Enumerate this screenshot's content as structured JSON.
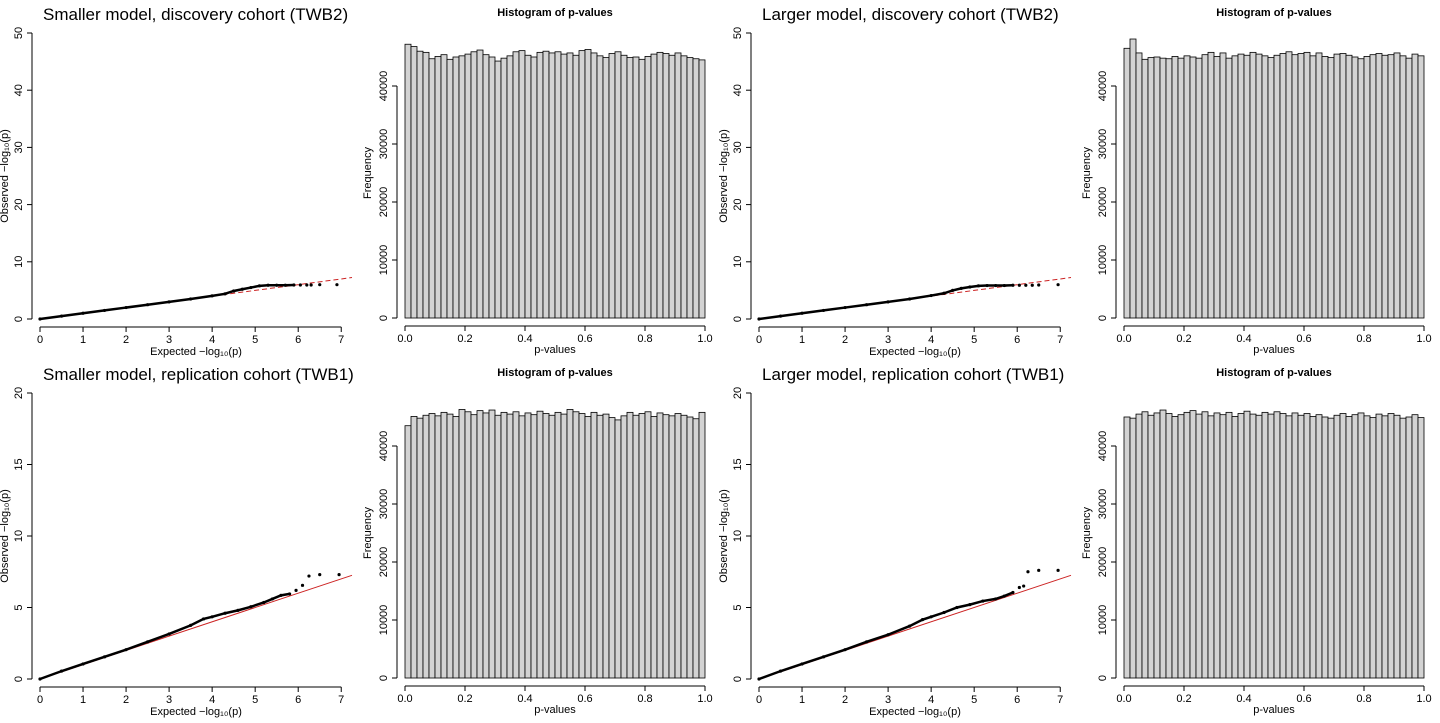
{
  "figure": {
    "colors": {
      "points": "#000000",
      "reference_line": "#cc2222",
      "bar_fill": "#d3d3d3",
      "bar_stroke": "#000000",
      "axis": "#000000"
    }
  },
  "chart_data": [
    {
      "id": "qq-small-discovery",
      "type": "scatter",
      "title": "Smaller model, discovery cohort (TWB2)",
      "xlabel": "Expected −log₁₀(p)",
      "ylabel": "Observed −log₁₀(p)",
      "xlim": [
        0,
        7.25
      ],
      "ylim": [
        0,
        50
      ],
      "xticks": [
        "0",
        "1",
        "2",
        "3",
        "4",
        "5",
        "6",
        "7"
      ],
      "yticks": [
        "0",
        "10",
        "20",
        "30",
        "40",
        "50"
      ],
      "xtick_values": [
        0,
        1,
        2,
        3,
        4,
        5,
        6,
        7
      ],
      "ytick_values": [
        0,
        10,
        20,
        30,
        40,
        50
      ],
      "reference_line": {
        "from": [
          0,
          0
        ],
        "to": [
          7.25,
          7.25
        ],
        "style": "dashed"
      },
      "points": [
        [
          0,
          0
        ],
        [
          0.5,
          0.5
        ],
        [
          1,
          1
        ],
        [
          1.5,
          1.5
        ],
        [
          2,
          2
        ],
        [
          2.5,
          2.5
        ],
        [
          3,
          3
        ],
        [
          3.5,
          3.5
        ],
        [
          4,
          4.05
        ],
        [
          4.3,
          4.4
        ],
        [
          4.5,
          4.9
        ],
        [
          4.7,
          5.2
        ],
        [
          4.9,
          5.5
        ],
        [
          5.1,
          5.8
        ],
        [
          5.3,
          5.9
        ],
        [
          5.5,
          5.9
        ],
        [
          5.7,
          5.9
        ],
        [
          5.9,
          5.95
        ],
        [
          6.05,
          5.95
        ],
        [
          6.2,
          5.95
        ],
        [
          6.3,
          5.95
        ],
        [
          6.5,
          6
        ],
        [
          6.9,
          6
        ]
      ]
    },
    {
      "id": "hist-small-discovery",
      "type": "bar",
      "title": "Histogram of p-values",
      "xlabel": "p-values",
      "ylabel": "Frequency",
      "xlim": [
        0,
        1
      ],
      "ylim": [
        0,
        50000
      ],
      "xticks": [
        "0.0",
        "0.2",
        "0.4",
        "0.6",
        "0.8",
        "1.0"
      ],
      "yticks": [
        "0",
        "10000",
        "20000",
        "30000",
        "40000"
      ],
      "xtick_values": [
        0,
        0.2,
        0.4,
        0.6,
        0.8,
        1.0
      ],
      "ytick_values": [
        0,
        10000,
        20000,
        30000,
        40000
      ],
      "bin_width": 0.02,
      "values": [
        47200,
        46800,
        46000,
        45800,
        44700,
        45100,
        45400,
        44600,
        45000,
        45200,
        45500,
        45900,
        46200,
        45400,
        45000,
        44300,
        44800,
        45200,
        45900,
        46100,
        45300,
        45000,
        45800,
        46000,
        45700,
        45900,
        45500,
        45700,
        45300,
        46100,
        46300,
        45700,
        45200,
        44900,
        45600,
        45900,
        45300,
        44900,
        45000,
        44600,
        45100,
        45500,
        45800,
        45600,
        45300,
        45700,
        45200,
        44900,
        44700,
        44500
      ]
    },
    {
      "id": "qq-large-discovery",
      "type": "scatter",
      "title": "Larger model, discovery cohort (TWB2)",
      "xlabel": "Expected −log₁₀(p)",
      "ylabel": "Observed −log₁₀(p)",
      "xlim": [
        0,
        7.25
      ],
      "ylim": [
        0,
        50
      ],
      "xticks": [
        "0",
        "1",
        "2",
        "3",
        "4",
        "5",
        "6",
        "7"
      ],
      "yticks": [
        "0",
        "10",
        "20",
        "30",
        "40",
        "50"
      ],
      "xtick_values": [
        0,
        1,
        2,
        3,
        4,
        5,
        6,
        7
      ],
      "ytick_values": [
        0,
        10,
        20,
        30,
        40,
        50
      ],
      "reference_line": {
        "from": [
          0,
          0
        ],
        "to": [
          7.25,
          7.25
        ],
        "style": "dashed"
      },
      "points": [
        [
          0,
          0
        ],
        [
          0.5,
          0.5
        ],
        [
          1,
          1
        ],
        [
          1.5,
          1.5
        ],
        [
          2,
          2
        ],
        [
          2.5,
          2.5
        ],
        [
          3,
          3
        ],
        [
          3.5,
          3.5
        ],
        [
          4,
          4.1
        ],
        [
          4.3,
          4.5
        ],
        [
          4.5,
          5
        ],
        [
          4.7,
          5.35
        ],
        [
          4.9,
          5.6
        ],
        [
          5.1,
          5.8
        ],
        [
          5.3,
          5.85
        ],
        [
          5.5,
          5.85
        ],
        [
          5.7,
          5.85
        ],
        [
          5.9,
          5.9
        ],
        [
          6.05,
          5.9
        ],
        [
          6.2,
          5.9
        ],
        [
          6.35,
          5.9
        ],
        [
          6.5,
          5.95
        ],
        [
          6.95,
          6
        ]
      ]
    },
    {
      "id": "hist-large-discovery",
      "type": "bar",
      "title": "Histogram of p-values",
      "xlabel": "p-values",
      "ylabel": "Frequency",
      "xlim": [
        0,
        1
      ],
      "ylim": [
        0,
        50000
      ],
      "xticks": [
        "0.0",
        "0.2",
        "0.4",
        "0.6",
        "0.8",
        "1.0"
      ],
      "yticks": [
        "0",
        "10000",
        "20000",
        "30000",
        "40000"
      ],
      "xtick_values": [
        0,
        0.2,
        0.4,
        0.6,
        0.8,
        1.0
      ],
      "ytick_values": [
        0,
        10000,
        20000,
        30000,
        40000
      ],
      "bin_width": 0.02,
      "values": [
        46500,
        48100,
        45700,
        44600,
        44900,
        45000,
        44800,
        44700,
        45100,
        44800,
        45200,
        45000,
        44800,
        45400,
        45800,
        45100,
        45700,
        44800,
        45200,
        45500,
        45300,
        45800,
        45500,
        45200,
        44900,
        45300,
        45600,
        45900,
        45400,
        45600,
        45800,
        45200,
        45700,
        45100,
        44900,
        45500,
        45600,
        45300,
        45000,
        44700,
        45100,
        45400,
        45600,
        45300,
        45400,
        45700,
        45200,
        44800,
        45500,
        45200
      ]
    },
    {
      "id": "qq-small-replication",
      "type": "scatter",
      "title": "Smaller model, replication cohort (TWB1)",
      "xlabel": "Expected −log₁₀(p)",
      "ylabel": "Observed −log₁₀(p)",
      "xlim": [
        0,
        7.25
      ],
      "ylim": [
        0,
        20
      ],
      "xticks": [
        "0",
        "1",
        "2",
        "3",
        "4",
        "5",
        "6",
        "7"
      ],
      "yticks": [
        "0",
        "5",
        "10",
        "15",
        "20"
      ],
      "xtick_values": [
        0,
        1,
        2,
        3,
        4,
        5,
        6,
        7
      ],
      "ytick_values": [
        0,
        5,
        10,
        15,
        20
      ],
      "reference_line": {
        "from": [
          0,
          0
        ],
        "to": [
          7.25,
          7.25
        ],
        "style": "solid"
      },
      "points": [
        [
          0,
          0
        ],
        [
          0.5,
          0.55
        ],
        [
          1,
          1.05
        ],
        [
          1.5,
          1.55
        ],
        [
          2,
          2.05
        ],
        [
          2.5,
          2.6
        ],
        [
          3,
          3.15
        ],
        [
          3.5,
          3.75
        ],
        [
          3.8,
          4.2
        ],
        [
          4,
          4.35
        ],
        [
          4.3,
          4.6
        ],
        [
          4.6,
          4.8
        ],
        [
          4.9,
          5.05
        ],
        [
          5.2,
          5.35
        ],
        [
          5.4,
          5.6
        ],
        [
          5.6,
          5.85
        ],
        [
          5.8,
          5.95
        ],
        [
          5.95,
          6.2
        ],
        [
          6.1,
          6.55
        ],
        [
          6.25,
          7.2
        ],
        [
          6.5,
          7.3
        ],
        [
          6.95,
          7.3
        ]
      ]
    },
    {
      "id": "hist-small-replication",
      "type": "bar",
      "title": "Histogram of p-values",
      "xlabel": "p-values",
      "ylabel": "Frequency",
      "xlim": [
        0,
        1
      ],
      "ylim": [
        0,
        50000
      ],
      "xticks": [
        "0.0",
        "0.2",
        "0.4",
        "0.6",
        "0.8",
        "1.0"
      ],
      "yticks": [
        "0",
        "10000",
        "20000",
        "30000",
        "40000"
      ],
      "xtick_values": [
        0,
        0.2,
        0.4,
        0.6,
        0.8,
        1.0
      ],
      "ytick_values": [
        0,
        10000,
        20000,
        30000,
        40000
      ],
      "bin_width": 0.02,
      "values": [
        43500,
        45100,
        44800,
        45300,
        45600,
        45200,
        45800,
        45500,
        45100,
        46300,
        45900,
        45400,
        46100,
        45700,
        46200,
        45300,
        45800,
        45500,
        45900,
        45200,
        45700,
        45400,
        46000,
        45600,
        45300,
        45800,
        45500,
        46300,
        45900,
        45600,
        45100,
        45800,
        45300,
        45500,
        44900,
        44500,
        45200,
        45800,
        45300,
        45600,
        45900,
        45100,
        45700,
        45400,
        45200,
        45600,
        45300,
        45000,
        44700,
        45800
      ]
    },
    {
      "id": "qq-large-replication",
      "type": "scatter",
      "title": "Larger model, replication cohort (TWB1)",
      "xlabel": "Expected −log₁₀(p)",
      "ylabel": "Observed −log₁₀(p)",
      "xlim": [
        0,
        7.25
      ],
      "ylim": [
        0,
        20
      ],
      "xticks": [
        "0",
        "1",
        "2",
        "3",
        "4",
        "5",
        "6",
        "7"
      ],
      "yticks": [
        "0",
        "5",
        "10",
        "15",
        "20"
      ],
      "xtick_values": [
        0,
        1,
        2,
        3,
        4,
        5,
        6,
        7
      ],
      "ytick_values": [
        0,
        5,
        10,
        15,
        20
      ],
      "reference_line": {
        "from": [
          0,
          0
        ],
        "to": [
          7.25,
          7.25
        ],
        "style": "solid"
      },
      "points": [
        [
          0,
          0
        ],
        [
          0.5,
          0.55
        ],
        [
          1,
          1.05
        ],
        [
          1.5,
          1.55
        ],
        [
          2,
          2.05
        ],
        [
          2.5,
          2.6
        ],
        [
          3,
          3.1
        ],
        [
          3.5,
          3.7
        ],
        [
          3.8,
          4.15
        ],
        [
          4,
          4.35
        ],
        [
          4.3,
          4.65
        ],
        [
          4.6,
          5
        ],
        [
          4.9,
          5.2
        ],
        [
          5.2,
          5.45
        ],
        [
          5.5,
          5.6
        ],
        [
          5.7,
          5.8
        ],
        [
          5.9,
          6.05
        ],
        [
          6.05,
          6.4
        ],
        [
          6.15,
          6.5
        ],
        [
          6.25,
          7.5
        ],
        [
          6.5,
          7.6
        ],
        [
          6.95,
          7.6
        ]
      ]
    },
    {
      "id": "hist-large-replication",
      "type": "bar",
      "title": "Histogram of p-values",
      "xlabel": "p-values",
      "ylabel": "Frequency",
      "xlim": [
        0,
        1
      ],
      "ylim": [
        0,
        50000
      ],
      "xticks": [
        "0.0",
        "0.2",
        "0.4",
        "0.6",
        "0.8",
        "1.0"
      ],
      "yticks": [
        "0",
        "10000",
        "20000",
        "30000",
        "40000"
      ],
      "xtick_values": [
        0,
        0.2,
        0.4,
        0.6,
        0.8,
        1.0
      ],
      "ytick_values": [
        0,
        10000,
        20000,
        30000,
        40000
      ],
      "bin_width": 0.02,
      "values": [
        45000,
        44800,
        45500,
        45900,
        45300,
        45700,
        46200,
        45600,
        45100,
        45400,
        45800,
        46100,
        45500,
        45900,
        45200,
        45700,
        45400,
        45800,
        45100,
        45600,
        46000,
        45500,
        45300,
        45800,
        45500,
        45900,
        45600,
        45200,
        45700,
        45300,
        45600,
        45100,
        45400,
        45000,
        44800,
        45300,
        45600,
        45100,
        45400,
        45700,
        45200,
        44900,
        45500,
        45200,
        45600,
        45300,
        44800,
        45000,
        45400,
        44900
      ]
    }
  ]
}
